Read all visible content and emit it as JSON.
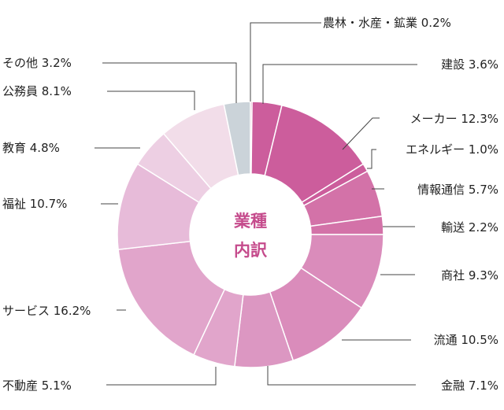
{
  "chart_data": {
    "type": "pie",
    "donut": true,
    "center_label": [
      "業種",
      "内訳"
    ],
    "categories": [
      "農林・水産・鉱業",
      "建設",
      "メーカー",
      "エネルギー",
      "情報通信",
      "輸送",
      "商社",
      "流通",
      "金融",
      "不動産",
      "サービス",
      "福祉",
      "教育",
      "公務員",
      "その他"
    ],
    "values": [
      0.2,
      3.6,
      12.3,
      1.0,
      5.7,
      2.2,
      9.3,
      10.5,
      7.1,
      5.1,
      16.2,
      10.7,
      4.8,
      8.1,
      3.2
    ],
    "value_labels": [
      "0.2%",
      "3.6%",
      "12.3%",
      "1.0%",
      "5.7%",
      "2.2%",
      "9.3%",
      "10.5%",
      "7.1%",
      "5.1%",
      "16.2%",
      "10.7%",
      "4.8%",
      "8.1%",
      "3.2%"
    ],
    "colors": [
      "#c54b8c",
      "#cc5d9c",
      "#cc5d9c",
      "#cc5d9c",
      "#d372a8",
      "#d372a8",
      "#da8cbb",
      "#da8cbb",
      "#dc97c2",
      "#e1a5cb",
      "#e1a5cb",
      "#e7bbd9",
      "#edcfe3",
      "#f2dde9",
      "#cbd3d9"
    ]
  }
}
